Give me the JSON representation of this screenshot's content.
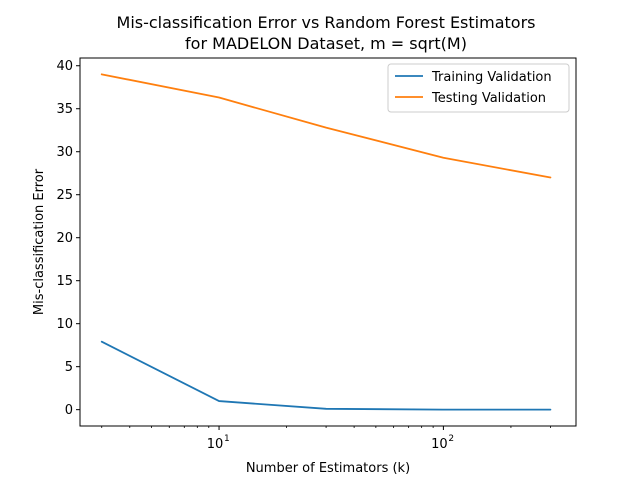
{
  "chart_data": {
    "type": "line",
    "title_line1": "Mis-classification Error vs Random Forest Estimators",
    "title_line2": "for MADELON Dataset, m = sqrt(M)",
    "xlabel": "Number of Estimators (k)",
    "ylabel": "Mis-classification Error",
    "x_scale": "log",
    "xlim": [
      2.4,
      390
    ],
    "ylim": [
      -1.9,
      40.9
    ],
    "x_ticks": [
      {
        "value": 10,
        "base": "10",
        "exp": "1"
      },
      {
        "value": 100,
        "base": "10",
        "exp": "2"
      }
    ],
    "y_ticks": [
      "0",
      "5",
      "10",
      "15",
      "20",
      "25",
      "30",
      "35",
      "40"
    ],
    "legend_position": "top-right",
    "series": [
      {
        "name": "Training Validation",
        "color": "#1f77b4",
        "x": [
          3,
          10,
          30,
          100,
          300
        ],
        "y": [
          7.9,
          1.0,
          0.1,
          0.0,
          0.0
        ]
      },
      {
        "name": "Testing Validation",
        "color": "#ff7f0e",
        "x": [
          3,
          10,
          30,
          100,
          300
        ],
        "y": [
          39.0,
          36.3,
          32.8,
          29.3,
          27.0
        ]
      }
    ]
  }
}
